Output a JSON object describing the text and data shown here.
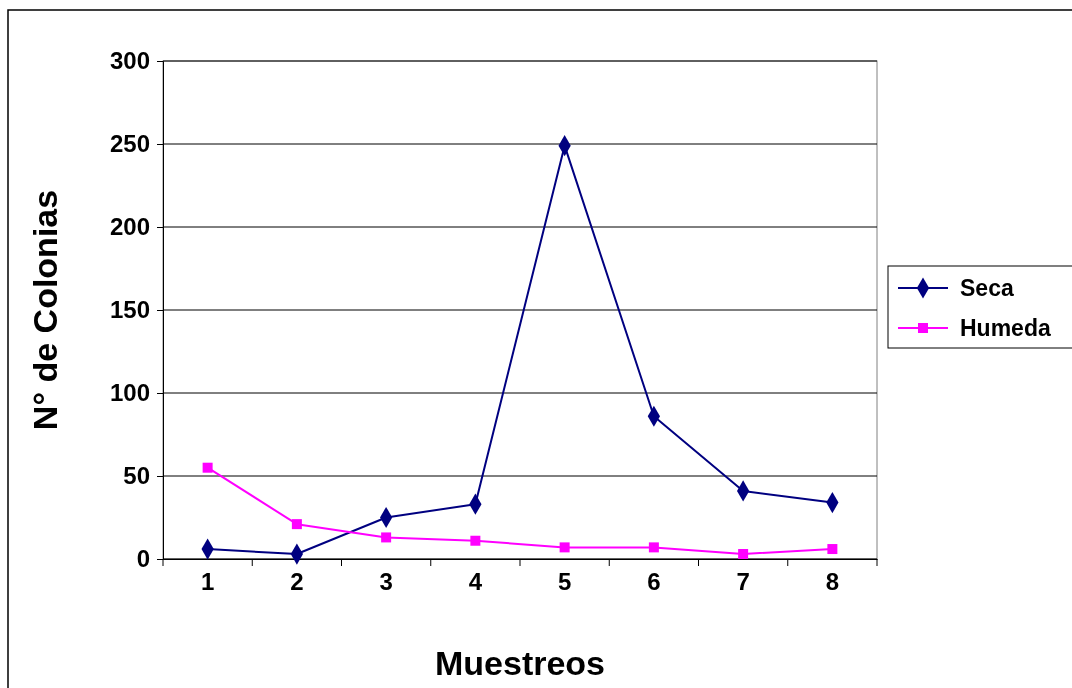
{
  "chart_data": {
    "type": "line",
    "xlabel": "Muestreos",
    "ylabel": "N° de Colonias",
    "categories": [
      "1",
      "2",
      "3",
      "4",
      "5",
      "6",
      "7",
      "8"
    ],
    "series": [
      {
        "name": "Seca",
        "color": "#000080",
        "marker": "diamond",
        "values": [
          6,
          3,
          25,
          33,
          249,
          86,
          41,
          34
        ]
      },
      {
        "name": "Humeda",
        "color": "#ff00ff",
        "marker": "square",
        "values": [
          55,
          21,
          13,
          11,
          7,
          7,
          3,
          6
        ]
      }
    ],
    "ylim": [
      0,
      300
    ],
    "yticks": [
      0,
      50,
      100,
      150,
      200,
      250,
      300
    ],
    "grid": "y",
    "legend": "right",
    "line_style": "solid"
  }
}
